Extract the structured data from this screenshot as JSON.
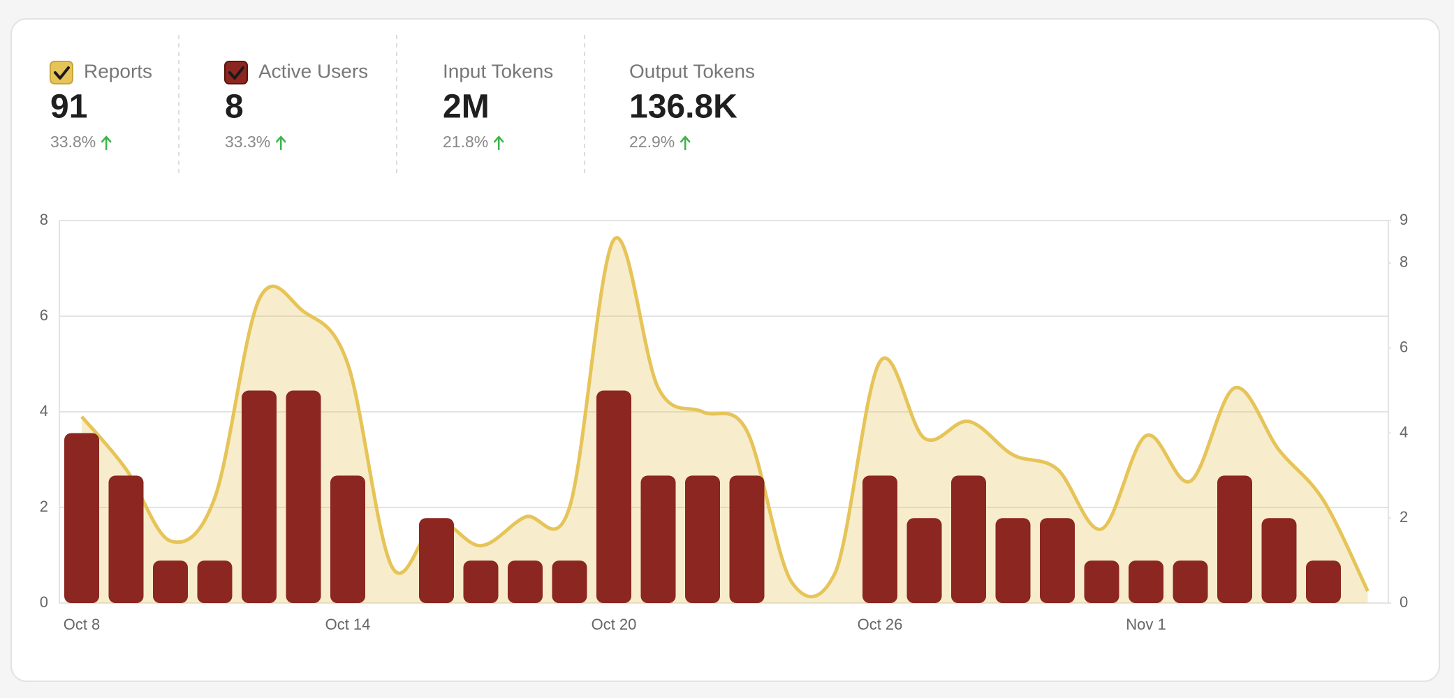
{
  "stats": [
    {
      "value": "91",
      "change": "33.8%"
    },
    {
      "value": "8",
      "change": "33.3%"
    },
    {
      "label": "Input Tokens",
      "value": "2M",
      "change": "21.8%"
    },
    {
      "label": "Output Tokens",
      "value": "136.8K",
      "change": "22.9%"
    }
  ],
  "chart_data": {
    "type": "bar",
    "categories": [
      "Oct 8",
      null,
      null,
      null,
      null,
      null,
      "Oct 14",
      null,
      null,
      null,
      null,
      null,
      "Oct 20",
      null,
      null,
      null,
      null,
      null,
      "Oct 26",
      null,
      null,
      null,
      null,
      null,
      "Nov 1",
      null,
      null,
      null,
      null,
      null
    ],
    "series": [
      {
        "name": "Reports",
        "type": "area",
        "color": "#e6c458",
        "values": [
          3.9,
          2.8,
          1.3,
          2.2,
          6.35,
          6.1,
          5.0,
          0.75,
          1.7,
          1.2,
          1.8,
          2.0,
          7.6,
          4.5,
          4.0,
          3.6,
          0.45,
          0.65,
          5.05,
          3.45,
          3.8,
          3.1,
          2.8,
          1.55,
          3.5,
          2.55,
          4.5,
          3.2,
          2.15,
          0.25
        ]
      },
      {
        "name": "Active Users",
        "type": "bar",
        "color": "#8b2620",
        "axis": "y2",
        "values": [
          4,
          3,
          1,
          1,
          5,
          5,
          3,
          0,
          2,
          1,
          1,
          1,
          5,
          3,
          3,
          3,
          0,
          0,
          3,
          2,
          3,
          2,
          2,
          1,
          1,
          1,
          3,
          2,
          1,
          0
        ]
      }
    ],
    "ylim": [
      0,
      8
    ],
    "yticks": [
      0,
      2,
      4,
      6,
      8
    ],
    "y2lim": [
      0,
      9
    ],
    "y2ticks": [
      0,
      2,
      4,
      6,
      8,
      9
    ],
    "grid": true
  }
}
